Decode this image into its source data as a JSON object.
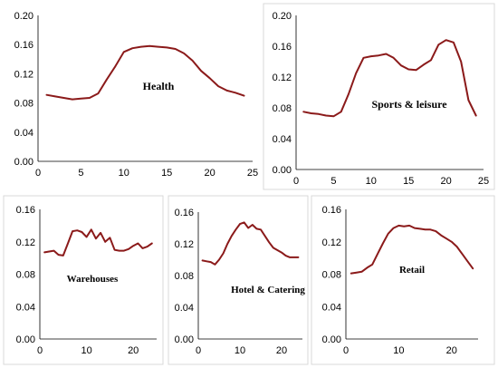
{
  "chart_data": [
    {
      "type": "line",
      "title": "Health",
      "xlim": [
        0,
        25
      ],
      "xticks": [
        0,
        5,
        10,
        15,
        20,
        25
      ],
      "ylim": [
        0,
        0.2
      ],
      "yticks": [
        "0.00",
        "0.04",
        "0.08",
        "0.12",
        "0.16",
        "0.20"
      ],
      "grid": false,
      "line_color": "#8b1a1a",
      "series": [
        {
          "x": [
            1,
            2,
            3,
            4,
            5,
            6,
            7,
            8,
            9,
            10,
            11,
            12,
            13,
            14,
            15,
            16,
            17,
            18,
            19,
            20,
            21,
            22,
            23,
            24
          ],
          "y": [
            0.091,
            0.089,
            0.087,
            0.085,
            0.086,
            0.087,
            0.093,
            0.112,
            0.13,
            0.15,
            0.155,
            0.157,
            0.158,
            0.157,
            0.156,
            0.154,
            0.148,
            0.138,
            0.124,
            0.114,
            0.103,
            0.097,
            0.094,
            0.09
          ]
        }
      ]
    },
    {
      "type": "line",
      "title": "Sports & leisure",
      "xlim": [
        0,
        25
      ],
      "xticks": [
        0,
        5,
        10,
        15,
        20,
        25
      ],
      "ylim": [
        0,
        0.2
      ],
      "yticks": [
        "0.00",
        "0.04",
        "0.08",
        "0.12",
        "0.16",
        "0.20"
      ],
      "grid": false,
      "line_color": "#8b1a1a",
      "series": [
        {
          "x": [
            1,
            2,
            3,
            4,
            5,
            6,
            7,
            8,
            9,
            10,
            11,
            12,
            13,
            14,
            15,
            16,
            17,
            18,
            19,
            20,
            21,
            22,
            23,
            24
          ],
          "y": [
            0.075,
            0.073,
            0.072,
            0.07,
            0.069,
            0.075,
            0.098,
            0.125,
            0.145,
            0.147,
            0.148,
            0.15,
            0.145,
            0.135,
            0.13,
            0.129,
            0.136,
            0.142,
            0.162,
            0.168,
            0.165,
            0.14,
            0.09,
            0.07
          ]
        }
      ]
    },
    {
      "type": "line",
      "title": "Warehouses",
      "xlim": [
        0,
        25
      ],
      "xticks": [
        0,
        10,
        20
      ],
      "ylim": [
        0,
        0.16
      ],
      "yticks": [
        "0.00",
        "0.04",
        "0.08",
        "0.12",
        "0.16"
      ],
      "grid": false,
      "line_color": "#8b1a1a",
      "series": [
        {
          "x": [
            1,
            2,
            3,
            4,
            5,
            6,
            7,
            8,
            9,
            10,
            11,
            12,
            13,
            14,
            15,
            16,
            17,
            18,
            19,
            20,
            21,
            22,
            23,
            24
          ],
          "y": [
            0.107,
            0.108,
            0.109,
            0.104,
            0.103,
            0.118,
            0.133,
            0.134,
            0.132,
            0.126,
            0.135,
            0.124,
            0.131,
            0.12,
            0.125,
            0.11,
            0.109,
            0.109,
            0.111,
            0.115,
            0.118,
            0.112,
            0.114,
            0.118
          ]
        }
      ]
    },
    {
      "type": "line",
      "title": "Hotel & Catering",
      "xlim": [
        0,
        25
      ],
      "xticks": [
        0,
        10,
        20
      ],
      "ylim": [
        0,
        0.16
      ],
      "yticks": [
        "0.00",
        "0.04",
        "0.08",
        "0.12",
        "0.16"
      ],
      "grid": false,
      "line_color": "#8b1a1a",
      "series": [
        {
          "x": [
            1,
            2,
            3,
            4,
            5,
            6,
            7,
            8,
            9,
            10,
            11,
            12,
            13,
            14,
            15,
            16,
            17,
            18,
            19,
            20,
            21,
            22,
            23,
            24
          ],
          "y": [
            0.099,
            0.098,
            0.097,
            0.094,
            0.1,
            0.108,
            0.12,
            0.13,
            0.138,
            0.145,
            0.147,
            0.14,
            0.144,
            0.139,
            0.138,
            0.13,
            0.122,
            0.115,
            0.112,
            0.109,
            0.105,
            0.103,
            0.103,
            0.103
          ]
        }
      ]
    },
    {
      "type": "line",
      "title": "Retail",
      "xlim": [
        0,
        25
      ],
      "xticks": [
        0,
        10,
        20
      ],
      "ylim": [
        0,
        0.16
      ],
      "yticks": [
        "0.00",
        "0.04",
        "0.08",
        "0.12",
        "0.16"
      ],
      "grid": false,
      "line_color": "#8b1a1a",
      "series": [
        {
          "x": [
            1,
            2,
            3,
            4,
            5,
            6,
            7,
            8,
            9,
            10,
            11,
            12,
            13,
            14,
            15,
            16,
            17,
            18,
            19,
            20,
            21,
            22,
            23,
            24
          ],
          "y": [
            0.081,
            0.082,
            0.083,
            0.088,
            0.092,
            0.105,
            0.118,
            0.13,
            0.137,
            0.14,
            0.139,
            0.14,
            0.137,
            0.136,
            0.135,
            0.135,
            0.133,
            0.128,
            0.124,
            0.12,
            0.114,
            0.105,
            0.096,
            0.087
          ]
        }
      ]
    }
  ]
}
